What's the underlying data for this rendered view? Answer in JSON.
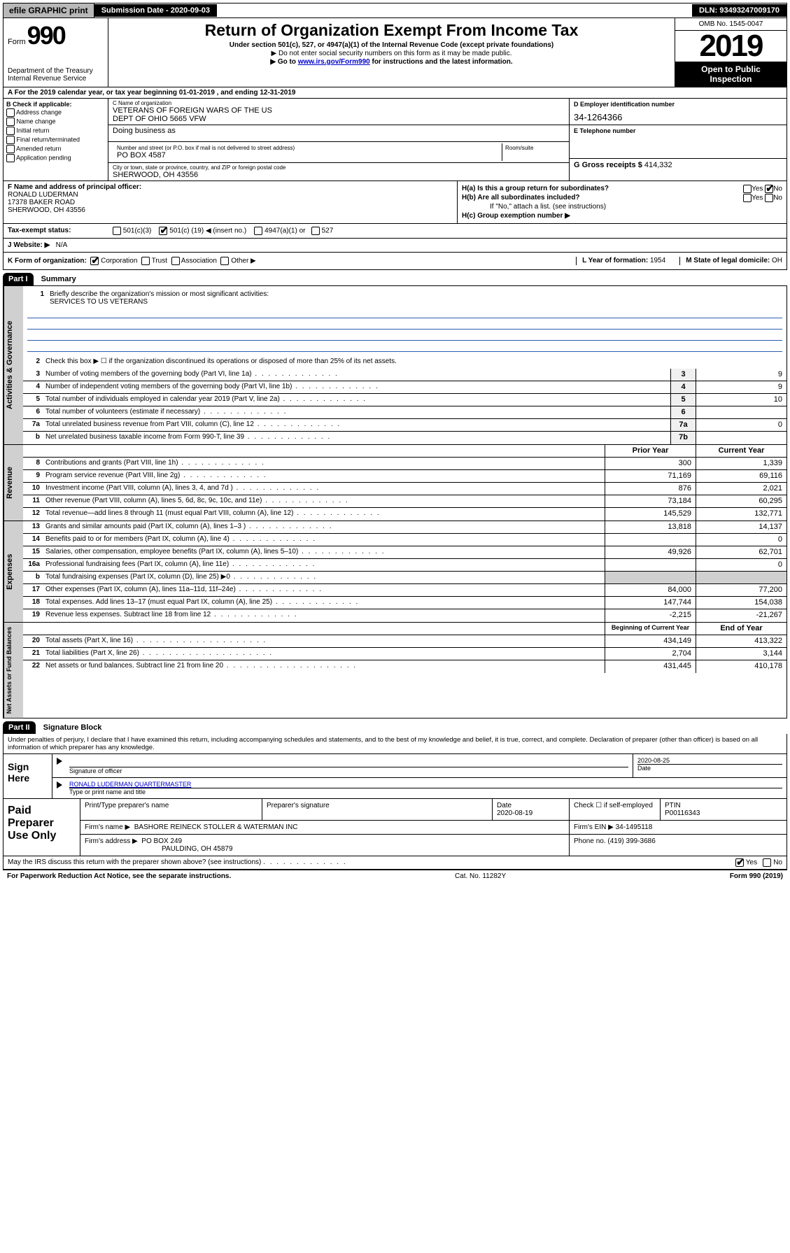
{
  "topbar": {
    "efile": "efile GRAPHIC print",
    "subdate_label": "Submission Date",
    "subdate": "2020-09-03",
    "dln_label": "DLN:",
    "dln": "93493247009170"
  },
  "header": {
    "form_word": "Form",
    "form_no": "990",
    "dept1": "Department of the Treasury",
    "dept2": "Internal Revenue Service",
    "title": "Return of Organization Exempt From Income Tax",
    "sub1": "Under section 501(c), 527, or 4947(a)(1) of the Internal Revenue Code (except private foundations)",
    "sub2": "▶ Do not enter social security numbers on this form as it may be made public.",
    "sub3_pre": "▶ Go to ",
    "sub3_link": "www.irs.gov/Form990",
    "sub3_post": " for instructions and the latest information.",
    "omb": "OMB No. 1545-0047",
    "year": "2019",
    "open1": "Open to Public",
    "open2": "Inspection"
  },
  "period": {
    "text_a": "A For the 2019 calendar year, or tax year beginning ",
    "begin": "01-01-2019",
    "mid": " , and ending ",
    "end": "12-31-2019"
  },
  "colB": {
    "hdr": "B Check if applicable:",
    "items": [
      "Address change",
      "Name change",
      "Initial return",
      "Final return/terminated",
      "Amended return",
      "Application pending"
    ]
  },
  "nameC": {
    "lbl": "C Name of organization",
    "line1": "VETERANS OF FOREIGN WARS OF THE US",
    "line2": "DEPT OF OHIO 5665 VFW",
    "dba_lbl": "Doing business as",
    "addr_lbl": "Number and street (or P.O. box if mail is not delivered to street address)",
    "addr": "PO BOX 4587",
    "room_lbl": "Room/suite",
    "city_lbl": "City or town, state or province, country, and ZIP or foreign postal code",
    "city": "SHERWOOD, OH  43556"
  },
  "colD": {
    "ein_lbl": "D Employer identification number",
    "ein": "34-1264366",
    "phone_lbl": "E Telephone number",
    "gross_lbl": "G Gross receipts $",
    "gross": "414,332"
  },
  "f": {
    "lbl": "F  Name and address of principal officer:",
    "l1": "RONALD LUDERMAN",
    "l2": "17378 BAKER ROAD",
    "l3": "SHERWOOD, OH  43556"
  },
  "h": {
    "a": "H(a)  Is this a group return for subordinates?",
    "b": "H(b)  Are all subordinates included?",
    "b2": "If \"No,\" attach a list. (see instructions)",
    "c": "H(c)  Group exemption number ▶",
    "yes": "Yes",
    "no": "No"
  },
  "taxstatus": {
    "lbl": "Tax-exempt status:",
    "o1": "501(c)(3)",
    "o2_a": "501(c) (",
    "o2_num": "19",
    "o2_b": ") ◀ (insert no.)",
    "o3": "4947(a)(1) or",
    "o4": "527"
  },
  "j": {
    "lbl": "J   Website: ▶",
    "val": "N/A"
  },
  "k": {
    "lbl": "K Form of organization:",
    "o1": "Corporation",
    "o2": "Trust",
    "o3": "Association",
    "o4": "Other ▶",
    "l_lbl": "L Year of formation:",
    "l_val": "1954",
    "m_lbl": "M State of legal domicile:",
    "m_val": "OH"
  },
  "part1": {
    "hdr": "Part I",
    "title": "Summary"
  },
  "sidetabs": {
    "gov": "Activities & Governance",
    "rev": "Revenue",
    "exp": "Expenses",
    "net": "Net Assets or Fund Balances"
  },
  "q1": {
    "num": "1",
    "text": "Briefly describe the organization's mission or most significant activities:",
    "mission": "SERVICES TO US VETERANS"
  },
  "q2": {
    "num": "2",
    "text": "Check this box ▶ ☐  if the organization discontinued its operations or disposed of more than 25% of its net assets."
  },
  "rows_gov": [
    {
      "n": "3",
      "t": "Number of voting members of the governing body (Part VI, line 1a)",
      "box": "3",
      "v": "9"
    },
    {
      "n": "4",
      "t": "Number of independent voting members of the governing body (Part VI, line 1b)",
      "box": "4",
      "v": "9"
    },
    {
      "n": "5",
      "t": "Total number of individuals employed in calendar year 2019 (Part V, line 2a)",
      "box": "5",
      "v": "10"
    },
    {
      "n": "6",
      "t": "Total number of volunteers (estimate if necessary)",
      "box": "6",
      "v": ""
    },
    {
      "n": "7a",
      "t": "Total unrelated business revenue from Part VIII, column (C), line 12",
      "box": "7a",
      "v": "0"
    },
    {
      "n": "b",
      "t": "Net unrelated business taxable income from Form 990-T, line 39",
      "box": "7b",
      "v": ""
    }
  ],
  "pycy": {
    "py": "Prior Year",
    "cy": "Current Year"
  },
  "rows_rev": [
    {
      "n": "8",
      "t": "Contributions and grants (Part VIII, line 1h)",
      "py": "300",
      "cy": "1,339"
    },
    {
      "n": "9",
      "t": "Program service revenue (Part VIII, line 2g)",
      "py": "71,169",
      "cy": "69,116"
    },
    {
      "n": "10",
      "t": "Investment income (Part VIII, column (A), lines 3, 4, and 7d )",
      "py": "876",
      "cy": "2,021"
    },
    {
      "n": "11",
      "t": "Other revenue (Part VIII, column (A), lines 5, 6d, 8c, 9c, 10c, and 11e)",
      "py": "73,184",
      "cy": "60,295"
    },
    {
      "n": "12",
      "t": "Total revenue—add lines 8 through 11 (must equal Part VIII, column (A), line 12)",
      "py": "145,529",
      "cy": "132,771"
    }
  ],
  "rows_exp": [
    {
      "n": "13",
      "t": "Grants and similar amounts paid (Part IX, column (A), lines 1–3 )",
      "py": "13,818",
      "cy": "14,137"
    },
    {
      "n": "14",
      "t": "Benefits paid to or for members (Part IX, column (A), line 4)",
      "py": "",
      "cy": "0"
    },
    {
      "n": "15",
      "t": "Salaries, other compensation, employee benefits (Part IX, column (A), lines 5–10)",
      "py": "49,926",
      "cy": "62,701"
    },
    {
      "n": "16a",
      "t": "Professional fundraising fees (Part IX, column (A), line 11e)",
      "py": "",
      "cy": "0"
    },
    {
      "n": "b",
      "t": "Total fundraising expenses (Part IX, column (D), line 25) ▶0",
      "py": "",
      "cy": "",
      "shade": true
    },
    {
      "n": "17",
      "t": "Other expenses (Part IX, column (A), lines 11a–11d, 11f–24e)",
      "py": "84,000",
      "cy": "77,200"
    },
    {
      "n": "18",
      "t": "Total expenses. Add lines 13–17 (must equal Part IX, column (A), line 25)",
      "py": "147,744",
      "cy": "154,038"
    },
    {
      "n": "19",
      "t": "Revenue less expenses. Subtract line 18 from line 12",
      "py": "-2,215",
      "cy": "-21,267"
    }
  ],
  "bcy": {
    "b": "Beginning of Current Year",
    "e": "End of Year"
  },
  "rows_net": [
    {
      "n": "20",
      "t": "Total assets (Part X, line 16)",
      "py": "434,149",
      "cy": "413,322"
    },
    {
      "n": "21",
      "t": "Total liabilities (Part X, line 26)",
      "py": "2,704",
      "cy": "3,144"
    },
    {
      "n": "22",
      "t": "Net assets or fund balances. Subtract line 21 from line 20",
      "py": "431,445",
      "cy": "410,178"
    }
  ],
  "part2": {
    "hdr": "Part II",
    "title": "Signature Block"
  },
  "perjury": "Under penalties of perjury, I declare that I have examined this return, including accompanying schedules and statements, and to the best of my knowledge and belief, it is true, correct, and complete. Declaration of preparer (other than officer) is based on all information of which preparer has any knowledge.",
  "sign": {
    "here": "Sign Here",
    "sig_lbl": "Signature of officer",
    "date": "2020-08-25",
    "date_lbl": "Date",
    "name": "RONALD LUDERMAN QUARTERMASTER",
    "name_lbl": "Type or print name and title"
  },
  "paid": {
    "left": "Paid Preparer Use Only",
    "h1": "Print/Type preparer's name",
    "h2": "Preparer's signature",
    "h3": "Date",
    "date": "2020-08-19",
    "h4": "Check ☐ if self-employed",
    "h5": "PTIN",
    "ptin": "P00116343",
    "firm_lbl": "Firm's name    ▶",
    "firm": "BASHORE REINECK STOLLER & WATERMAN INC",
    "ein_lbl": "Firm's EIN ▶",
    "ein": "34-1495118",
    "addr_lbl": "Firm's address ▶",
    "addr1": "PO BOX 249",
    "addr2": "PAULDING, OH  45879",
    "phone_lbl": "Phone no.",
    "phone": "(419) 399-3686"
  },
  "discuss": {
    "q": "May the IRS discuss this return with the preparer shown above? (see instructions)",
    "yes": "Yes",
    "no": "No"
  },
  "footer": {
    "l": "For Paperwork Reduction Act Notice, see the separate instructions.",
    "m": "Cat. No. 11282Y",
    "r": "Form 990 (2019)"
  },
  "colors": {
    "black": "#000000",
    "white": "#ffffff",
    "grey_btn": "#b8b8b8",
    "grey_side": "#d0d0d0",
    "link": "#0000cc",
    "uline": "#2a5db0"
  }
}
